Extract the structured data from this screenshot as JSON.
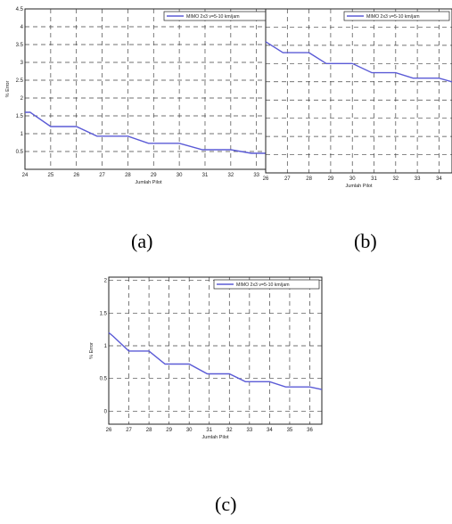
{
  "chart_data": [
    {
      "id": "a",
      "type": "line",
      "panel_label": "(a)",
      "xlabel": "Jumlah Pilot",
      "ylabel": "% Error",
      "xlim": [
        24,
        33.6
      ],
      "ylim": [
        0,
        4.5
      ],
      "xticks": [
        24,
        25,
        26,
        27,
        28,
        29,
        30,
        31,
        32,
        33
      ],
      "yticks": [
        0.5,
        1,
        1.5,
        2,
        2.5,
        3,
        3.5,
        4,
        4.5
      ],
      "ytick_labels": [
        "0.5",
        "1",
        "1.5",
        "2",
        "2.5",
        "3",
        "3.5",
        "4",
        "4.5"
      ],
      "grid": true,
      "legend_position": "top-right",
      "series": [
        {
          "name": "MIMO 2x3 v=5-10 km/jam",
          "color": "#5b5bd6",
          "x": [
            24,
            24.2,
            25,
            26,
            26.8,
            28,
            28.8,
            30,
            30.9,
            32,
            32.8,
            33.6
          ],
          "y": [
            1.6,
            1.6,
            1.2,
            1.2,
            0.93,
            0.93,
            0.73,
            0.73,
            0.55,
            0.55,
            0.45,
            0.45
          ]
        }
      ]
    },
    {
      "id": "b",
      "type": "line",
      "panel_label": "(b)",
      "xlabel": "Jumlah Pilot",
      "ylabel": "",
      "xlim": [
        26,
        34.6
      ],
      "ylim": [
        0,
        4.5
      ],
      "xticks": [
        26,
        27,
        28,
        29,
        30,
        31,
        32,
        33,
        34
      ],
      "grid": true,
      "legend_position": "top-right",
      "series": [
        {
          "name": "MIMO 2x3 v=5-10 km/jam",
          "color": "#5b5bd6",
          "x": [
            26,
            26.8,
            28,
            28.8,
            30,
            30.9,
            32,
            32.8,
            34,
            34.6
          ],
          "y": [
            3.6,
            3.3,
            3.3,
            3.0,
            3.0,
            2.75,
            2.75,
            2.6,
            2.6,
            2.5
          ]
        }
      ]
    },
    {
      "id": "c",
      "type": "line",
      "panel_label": "(c)",
      "xlabel": "Jumlah Pilot",
      "ylabel": "% Error",
      "xlim": [
        26,
        36.6
      ],
      "ylim": [
        -0.2,
        2.05
      ],
      "xticks": [
        26,
        27,
        28,
        29,
        30,
        31,
        32,
        33,
        34,
        35,
        36
      ],
      "yticks": [
        0,
        0.5,
        1,
        1.5,
        2
      ],
      "ytick_labels": [
        "0",
        "0.5",
        "1",
        "1.5",
        "2"
      ],
      "grid": true,
      "legend_position": "top-right",
      "series": [
        {
          "name": "MIMO 2x3 v=5-10 km/jam",
          "color": "#5b5bd6",
          "x": [
            26,
            26.2,
            27,
            28,
            28.8,
            30,
            30.9,
            32,
            32.8,
            34,
            34.8,
            36,
            36.6
          ],
          "y": [
            1.2,
            1.15,
            0.92,
            0.92,
            0.72,
            0.72,
            0.57,
            0.57,
            0.45,
            0.45,
            0.37,
            0.37,
            0.33
          ]
        }
      ]
    }
  ]
}
